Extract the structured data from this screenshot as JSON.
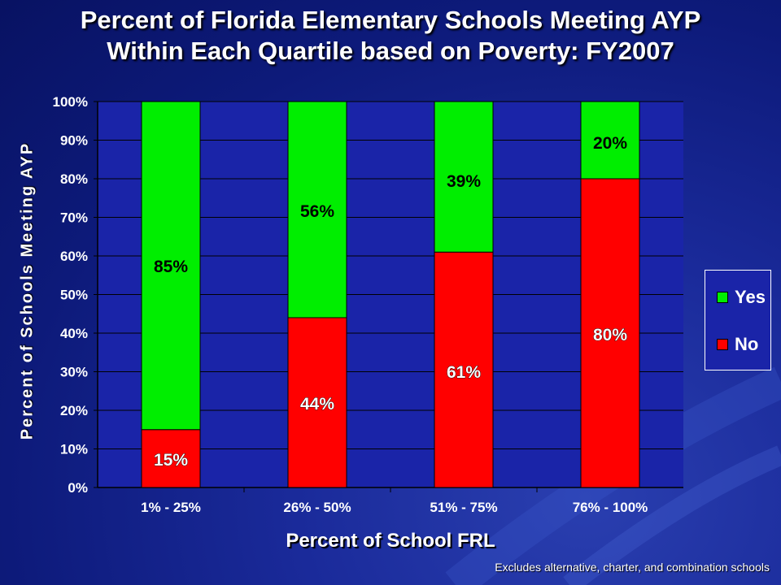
{
  "title_line1": "Percent of Florida Elementary Schools Meeting AYP",
  "title_line2": "Within Each Quartile based on Poverty: FY2007",
  "footnote": "Excludes alternative, charter, and combination schools",
  "colors": {
    "yes": "#00ee00",
    "no": "#ff0000",
    "plot_bg": "#1a24a8"
  },
  "chart_data": {
    "type": "bar",
    "stacked": true,
    "categories": [
      "1% - 25%",
      "26% - 50%",
      "51% - 75%",
      "76% - 100%"
    ],
    "series": [
      {
        "name": "No",
        "values": [
          15,
          44,
          61,
          80
        ],
        "labels": [
          "15%",
          "44%",
          "61%",
          "80%"
        ]
      },
      {
        "name": "Yes",
        "values": [
          85,
          56,
          39,
          20
        ],
        "labels": [
          "85%",
          "56%",
          "39%",
          "20%"
        ]
      }
    ],
    "xlabel": "Percent of School FRL",
    "ylabel": "Percent of Schools Meeting AYP",
    "ylim": [
      0,
      100
    ],
    "yticks": [
      "0%",
      "10%",
      "20%",
      "30%",
      "40%",
      "50%",
      "60%",
      "70%",
      "80%",
      "90%",
      "100%"
    ],
    "grid": true,
    "legend": {
      "position": "right",
      "entries": [
        "Yes",
        "No"
      ]
    }
  }
}
